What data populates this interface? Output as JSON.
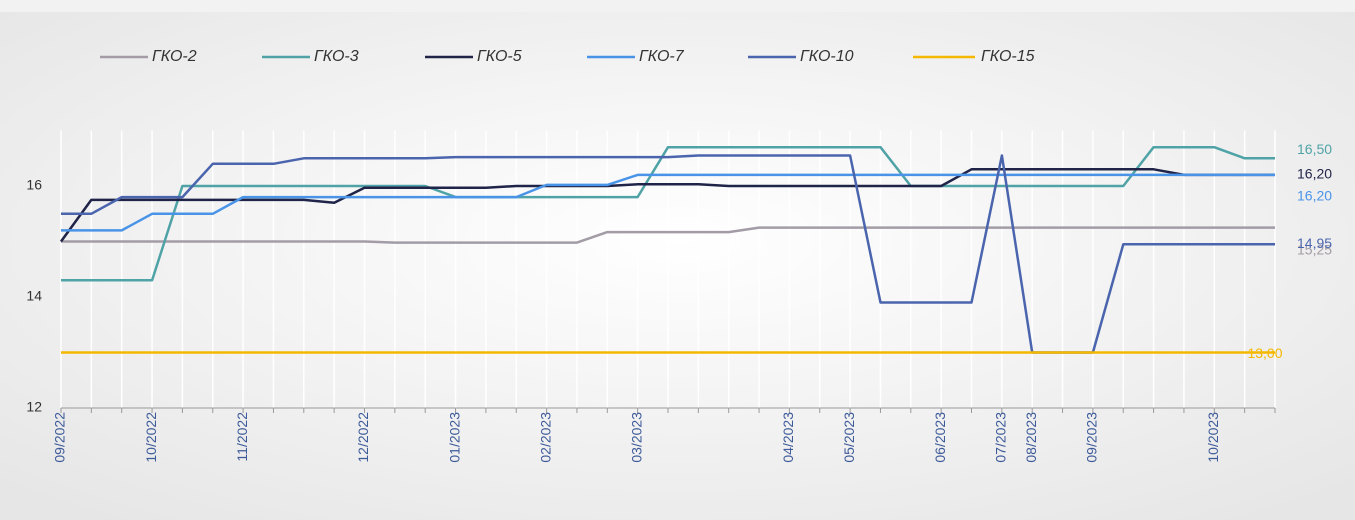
{
  "chart_data": {
    "type": "line",
    "categories": [
      "09/2022",
      null,
      null,
      "10/2022",
      null,
      null,
      "11/2022",
      null,
      null,
      null,
      "12/2022",
      null,
      null,
      "01/2023",
      null,
      null,
      "02/2023",
      null,
      null,
      "03/2023",
      null,
      null,
      null,
      null,
      "04/2023",
      null,
      "05/2023",
      null,
      null,
      "06/2023",
      null,
      "07/2023",
      "08/2023",
      null,
      "09/2023",
      null,
      null,
      null,
      "10/2023",
      null,
      null
    ],
    "series": [
      {
        "name": "ГКО-2",
        "color": "#a39ca6",
        "values": [
          15.0,
          15.0,
          15.0,
          15.0,
          15.0,
          15.0,
          15.0,
          15.0,
          15.0,
          15.0,
          15.0,
          14.98,
          14.98,
          14.98,
          14.98,
          14.98,
          14.98,
          14.98,
          15.17,
          15.17,
          15.17,
          15.17,
          15.17,
          15.25,
          15.25,
          15.25,
          15.25,
          15.25,
          15.25,
          15.25,
          15.25,
          15.25,
          15.25,
          15.25,
          15.25,
          15.25,
          15.25,
          15.25,
          15.25,
          15.25,
          15.25
        ],
        "value_labels": {
          "40": "15,25"
        }
      },
      {
        "name": "ГКО-3",
        "color": "#4fa3a6",
        "values": [
          14.3,
          14.3,
          14.3,
          14.3,
          16.0,
          16.0,
          16.0,
          16.0,
          16.0,
          16.0,
          16.0,
          16.0,
          16.0,
          15.8,
          15.8,
          15.8,
          15.8,
          15.8,
          15.8,
          15.8,
          16.7,
          16.7,
          16.7,
          16.7,
          16.7,
          16.7,
          16.7,
          16.7,
          16.0,
          16.0,
          16.0,
          16.0,
          16.0,
          16.0,
          16.0,
          16.0,
          16.7,
          16.7,
          16.7,
          16.5,
          16.5
        ],
        "value_labels": {
          "40": "16,50"
        }
      },
      {
        "name": "ГКО-5",
        "color": "#1f2448",
        "values": [
          15.0,
          15.75,
          15.75,
          15.75,
          15.75,
          15.75,
          15.75,
          15.75,
          15.75,
          15.7,
          15.97,
          15.97,
          15.97,
          15.97,
          15.97,
          16.0,
          16.0,
          16.0,
          16.0,
          16.03,
          16.03,
          16.03,
          16.0,
          16.0,
          16.0,
          16.0,
          16.0,
          16.0,
          16.0,
          16.0,
          16.3,
          16.3,
          16.3,
          16.3,
          16.3,
          16.3,
          16.3,
          16.2,
          16.2,
          16.2,
          16.2
        ],
        "value_labels": {
          "40": "16,20"
        }
      },
      {
        "name": "ГКО-7",
        "color": "#4a94e8",
        "values": [
          15.2,
          15.2,
          15.2,
          15.5,
          15.5,
          15.5,
          15.8,
          15.8,
          15.8,
          15.8,
          15.8,
          15.8,
          15.8,
          15.8,
          15.8,
          15.8,
          16.02,
          16.02,
          16.02,
          16.2,
          16.2,
          16.2,
          16.2,
          16.2,
          16.2,
          16.2,
          16.2,
          16.2,
          16.2,
          16.2,
          16.2,
          16.2,
          16.2,
          16.2,
          16.2,
          16.2,
          16.2,
          16.2,
          16.2,
          16.2,
          16.2
        ],
        "value_labels": {
          "40": "16,20"
        }
      },
      {
        "name": "ГКО-10",
        "color": "#4a65ad",
        "values": [
          15.5,
          15.5,
          15.8,
          15.8,
          15.8,
          16.4,
          16.4,
          16.4,
          16.5,
          16.5,
          16.5,
          16.5,
          16.5,
          16.52,
          16.52,
          16.52,
          16.52,
          16.52,
          16.52,
          16.52,
          16.52,
          16.55,
          16.55,
          16.55,
          16.55,
          16.55,
          16.55,
          13.9,
          13.9,
          13.9,
          13.9,
          16.55,
          13.0,
          13.0,
          13.0,
          14.95,
          14.95,
          14.95,
          14.95,
          14.95,
          14.95
        ],
        "value_labels": {
          "40": "14,95"
        }
      },
      {
        "name": "ГКО-15",
        "color": "#f5b800",
        "values": [
          13.0,
          13.0,
          13.0,
          13.0,
          13.0,
          13.0,
          13.0,
          13.0,
          13.0,
          13.0,
          13.0,
          13.0,
          13.0,
          13.0,
          13.0,
          13.0,
          13.0,
          13.0,
          13.0,
          13.0,
          13.0,
          13.0,
          13.0,
          13.0,
          13.0,
          13.0,
          13.0,
          13.0,
          13.0,
          13.0,
          13.0,
          13.0,
          13.0,
          13.0,
          13.0,
          13.0,
          13.0,
          13.0,
          13.0,
          13.0,
          13.0
        ],
        "value_labels": {
          "40": "13,00"
        }
      }
    ],
    "ylim": [
      12,
      17
    ],
    "yticks": [
      12,
      14,
      16
    ],
    "grid": "x",
    "legend": "top"
  }
}
